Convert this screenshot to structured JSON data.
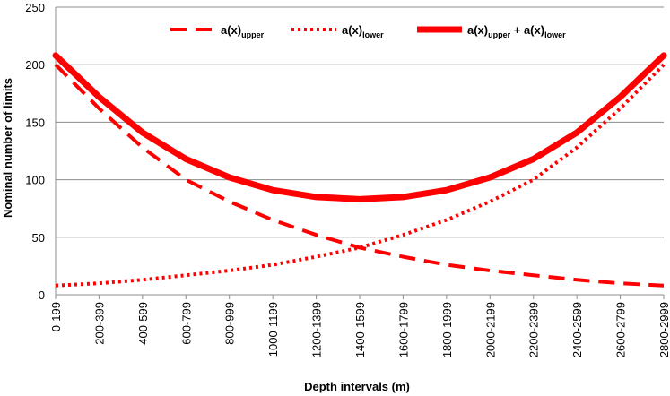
{
  "chart_data": {
    "type": "line",
    "xlabel": "Depth intervals (m)",
    "ylabel": "Nominal number of limits",
    "ylim": [
      0,
      250
    ],
    "yticks": [
      0,
      50,
      100,
      150,
      200,
      250
    ],
    "grid": "horizontal",
    "legend_position": "top",
    "categories": [
      "0-199",
      "200-399",
      "400-599",
      "600-799",
      "800-999",
      "1000-1199",
      "1200-1399",
      "1400-1599",
      "1600-1799",
      "1800-1999",
      "2000-2199",
      "2200-2399",
      "2400-2599",
      "2600-2799",
      "2800-2999"
    ],
    "series": [
      {
        "name_main": "a(x)",
        "name_sub": "upper",
        "name_extra": "",
        "style": "dashed",
        "color": "#ff0000",
        "values": [
          200,
          162,
          128,
          100,
          81,
          65,
          52,
          41,
          33,
          26,
          21,
          17,
          13,
          10,
          8
        ]
      },
      {
        "name_main": "a(x)",
        "name_sub": "lower",
        "name_extra": "",
        "style": "dotted",
        "color": "#ff0000",
        "values": [
          8,
          10,
          13,
          17,
          21,
          26,
          33,
          41,
          52,
          65,
          81,
          100,
          128,
          162,
          200
        ]
      },
      {
        "name_main": "a(x)",
        "name_sub": "upper",
        "name_extra": " + a(x)",
        "name_extra_sub": "lower",
        "style": "solid",
        "color": "#ff0000",
        "values": [
          208,
          172,
          141,
          118,
          102,
          91,
          85,
          83,
          85,
          91,
          102,
          118,
          141,
          172,
          208
        ]
      }
    ]
  }
}
